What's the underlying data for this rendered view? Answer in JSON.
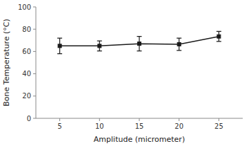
{
  "chart_data": {
    "type": "line",
    "xlabel": "Amplitude (micrometer)",
    "ylabel": "Bone Temperature (°C)",
    "x": [
      5,
      10,
      15,
      20,
      25
    ],
    "values": [
      65.0,
      65.0,
      67.0,
      66.5,
      73.5
    ],
    "yerr": [
      7.0,
      4.5,
      6.5,
      5.5,
      4.5
    ],
    "color": "#1a1a1a",
    "marker": "square",
    "xlim": [
      2,
      28
    ],
    "ylim": [
      0,
      100
    ],
    "xticks": [
      5,
      10,
      15,
      20,
      25
    ],
    "yticks": [
      0,
      20,
      40,
      60,
      80,
      100
    ],
    "grid": false
  }
}
